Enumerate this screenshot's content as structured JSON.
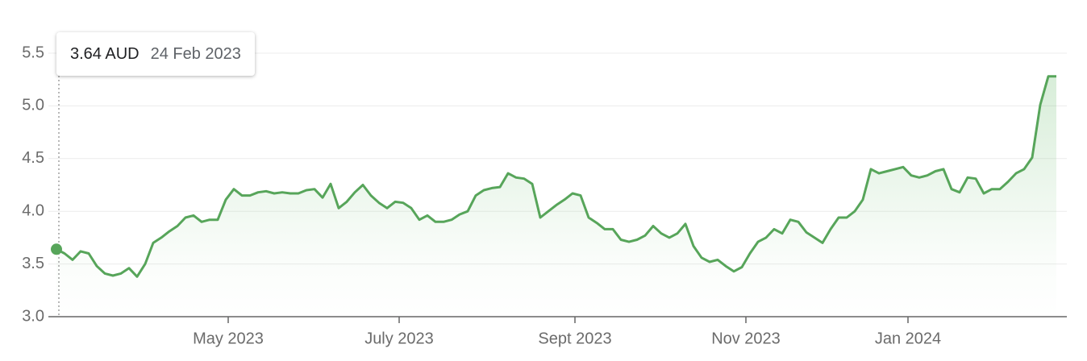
{
  "chart_data": {
    "type": "line",
    "color": "#57a55a",
    "grid": true,
    "values": [
      3.64,
      3.6,
      3.54,
      3.62,
      3.6,
      3.48,
      3.41,
      3.39,
      3.41,
      3.46,
      3.38,
      3.5,
      3.7,
      3.75,
      3.81,
      3.86,
      3.94,
      3.96,
      3.9,
      3.92,
      3.92,
      4.11,
      4.21,
      4.15,
      4.15,
      4.18,
      4.19,
      4.17,
      4.18,
      4.17,
      4.17,
      4.2,
      4.21,
      4.13,
      4.26,
      4.03,
      4.09,
      4.18,
      4.25,
      4.15,
      4.08,
      4.03,
      4.09,
      4.08,
      4.03,
      3.92,
      3.96,
      3.9,
      3.9,
      3.92,
      3.97,
      4.0,
      4.15,
      4.2,
      4.22,
      4.23,
      4.36,
      4.32,
      4.31,
      4.26,
      3.94,
      4.0,
      4.06,
      4.11,
      4.17,
      4.15,
      3.94,
      3.89,
      3.83,
      3.83,
      3.73,
      3.71,
      3.73,
      3.77,
      3.86,
      3.79,
      3.75,
      3.79,
      3.88,
      3.67,
      3.56,
      3.52,
      3.54,
      3.48,
      3.43,
      3.47,
      3.6,
      3.71,
      3.75,
      3.83,
      3.79,
      3.92,
      3.9,
      3.8,
      3.75,
      3.7,
      3.83,
      3.94,
      3.94,
      4.0,
      4.11,
      4.4,
      4.36,
      4.38,
      4.4,
      4.42,
      4.34,
      4.32,
      4.34,
      4.38,
      4.4,
      4.21,
      4.18,
      4.32,
      4.31,
      4.17,
      4.21,
      4.21,
      4.28,
      4.36,
      4.4,
      4.51,
      5.01,
      5.28,
      5.28
    ],
    "xlim": [
      0,
      124
    ],
    "xticks": [
      {
        "value": 21.3,
        "label": "May 2023"
      },
      {
        "value": 42.5,
        "label": "July 2023"
      },
      {
        "value": 64.3,
        "label": "Sept 2023"
      },
      {
        "value": 85.5,
        "label": "Nov 2023"
      },
      {
        "value": 105.6,
        "label": "Jan 2024"
      }
    ],
    "ylim": [
      3,
      5.5
    ],
    "yticks": [
      {
        "value": 3,
        "label": "3.0"
      },
      3.5,
      {
        "value": 4,
        "label": "4.0"
      },
      4.5,
      {
        "value": 5,
        "label": "5.0"
      },
      5.5
    ],
    "tooltip": {
      "label": "3.64 AUD",
      "date": "24 Feb 2023"
    }
  }
}
